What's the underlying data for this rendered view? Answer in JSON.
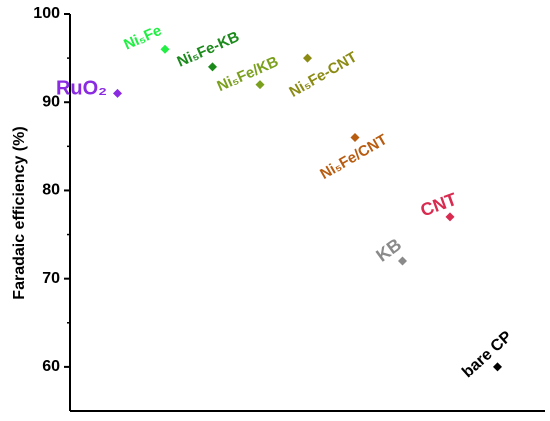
{
  "chart_data": {
    "type": "scatter",
    "title": "",
    "xlabel": "",
    "ylabel": "Faradaic efficiency (%)",
    "ylim": [
      55,
      100
    ],
    "y_ticks": [
      60,
      70,
      80,
      90,
      100
    ],
    "grid": false,
    "legend": "none",
    "x_index_range": [
      0,
      10
    ],
    "series": [
      {
        "label": "RuO₂",
        "x": 1,
        "y": 91,
        "color": "#8a2be2"
      },
      {
        "label": "Ni₅Fe",
        "x": 2,
        "y": 96,
        "color": "#22ee44"
      },
      {
        "label": "Ni₅Fe-KB",
        "x": 3,
        "y": 94,
        "color": "#1a8a1a"
      },
      {
        "label": "Ni₅Fe/KB",
        "x": 4,
        "y": 92,
        "color": "#7aa01e"
      },
      {
        "label": "Ni₅Fe-CNT",
        "x": 5,
        "y": 95,
        "color": "#8b8b14"
      },
      {
        "label": "Ni₅Fe/CNT",
        "x": 6,
        "y": 86,
        "color": "#b85c10"
      },
      {
        "label": "KB",
        "x": 7,
        "y": 72,
        "color": "#8a8a8a"
      },
      {
        "label": "CNT",
        "x": 8,
        "y": 77,
        "color": "#d92a50"
      },
      {
        "label": "bare CP",
        "x": 9,
        "y": 60,
        "color": "#000000"
      }
    ]
  }
}
